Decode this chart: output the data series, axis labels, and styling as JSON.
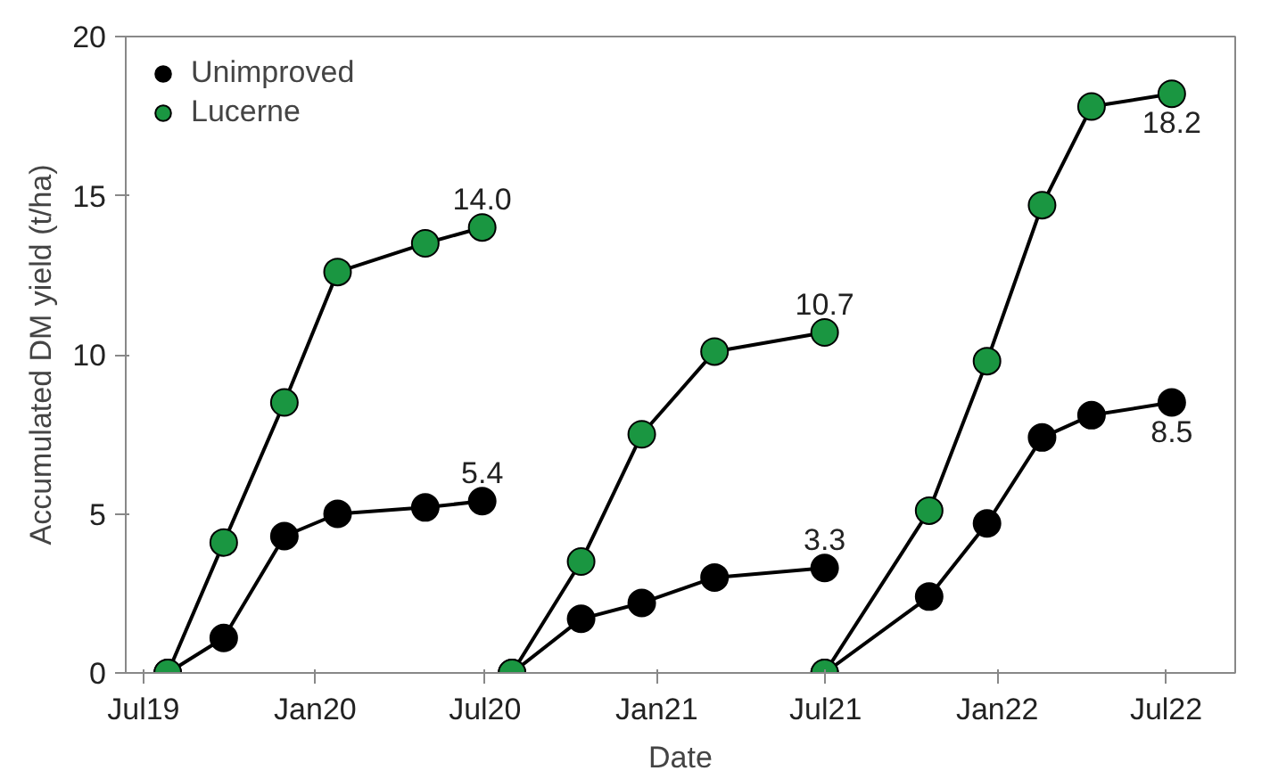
{
  "chart_data": {
    "type": "line",
    "xlabel": "Date",
    "ylabel": "Accumulated DM yield (t/ha)",
    "x": [
      "2019-07-27",
      "2019-09-25",
      "2019-11-29",
      "2020-01-25",
      "2020-04-28",
      "2020-06-28",
      "2020-07-30",
      "2020-10-12",
      "2020-12-16",
      "2021-03-04",
      "2021-06-30",
      "2021-06-30",
      "2021-10-20",
      "2021-12-21",
      "2022-02-18",
      "2022-04-12",
      "2022-07-07"
    ],
    "series": [
      {
        "name": "Unimproved",
        "color": "#000000",
        "values": [
          0,
          1.1,
          4.3,
          5.0,
          5.2,
          5.4,
          0,
          1.7,
          2.2,
          3.0,
          3.3,
          0,
          2.4,
          4.7,
          7.4,
          8.1,
          8.5
        ]
      },
      {
        "name": "Lucerne",
        "color": "#1a9641",
        "values": [
          0,
          4.1,
          8.5,
          12.6,
          13.5,
          14.0,
          0,
          3.5,
          7.5,
          10.1,
          10.7,
          0,
          5.1,
          9.8,
          14.7,
          17.8,
          18.2
        ]
      }
    ],
    "annotations": [
      {
        "text": "14.0",
        "x": "2020-06-28",
        "y": 14.0
      },
      {
        "text": "5.4",
        "x": "2020-06-28",
        "y": 5.4
      },
      {
        "text": "10.7",
        "x": "2021-06-30",
        "y": 10.7
      },
      {
        "text": "3.3",
        "x": "2021-06-30",
        "y": 3.3
      },
      {
        "text": "18.2",
        "x": "2022-07-07",
        "y": 18.2
      },
      {
        "text": "8.5",
        "x": "2022-07-07",
        "y": 8.5
      }
    ],
    "xlim": [
      "2019-06-12",
      "2022-09-13"
    ],
    "xticks": [
      {
        "value": "2019-07-01",
        "label": "Jul19"
      },
      {
        "value": "2020-01-01",
        "label": "Jan20"
      },
      {
        "value": "2020-07-01",
        "label": "Jul20"
      },
      {
        "value": "2021-01-01",
        "label": "Jan21"
      },
      {
        "value": "2021-07-01",
        "label": "Jul21"
      },
      {
        "value": "2022-01-01",
        "label": "Jan22"
      },
      {
        "value": "2022-07-01",
        "label": "Jul22"
      }
    ],
    "ylim": [
      0,
      20
    ],
    "yticks": [
      0,
      5,
      10,
      15,
      20
    ],
    "grid": false,
    "legend": "top left",
    "marker": "circle",
    "line_style": "solid"
  }
}
